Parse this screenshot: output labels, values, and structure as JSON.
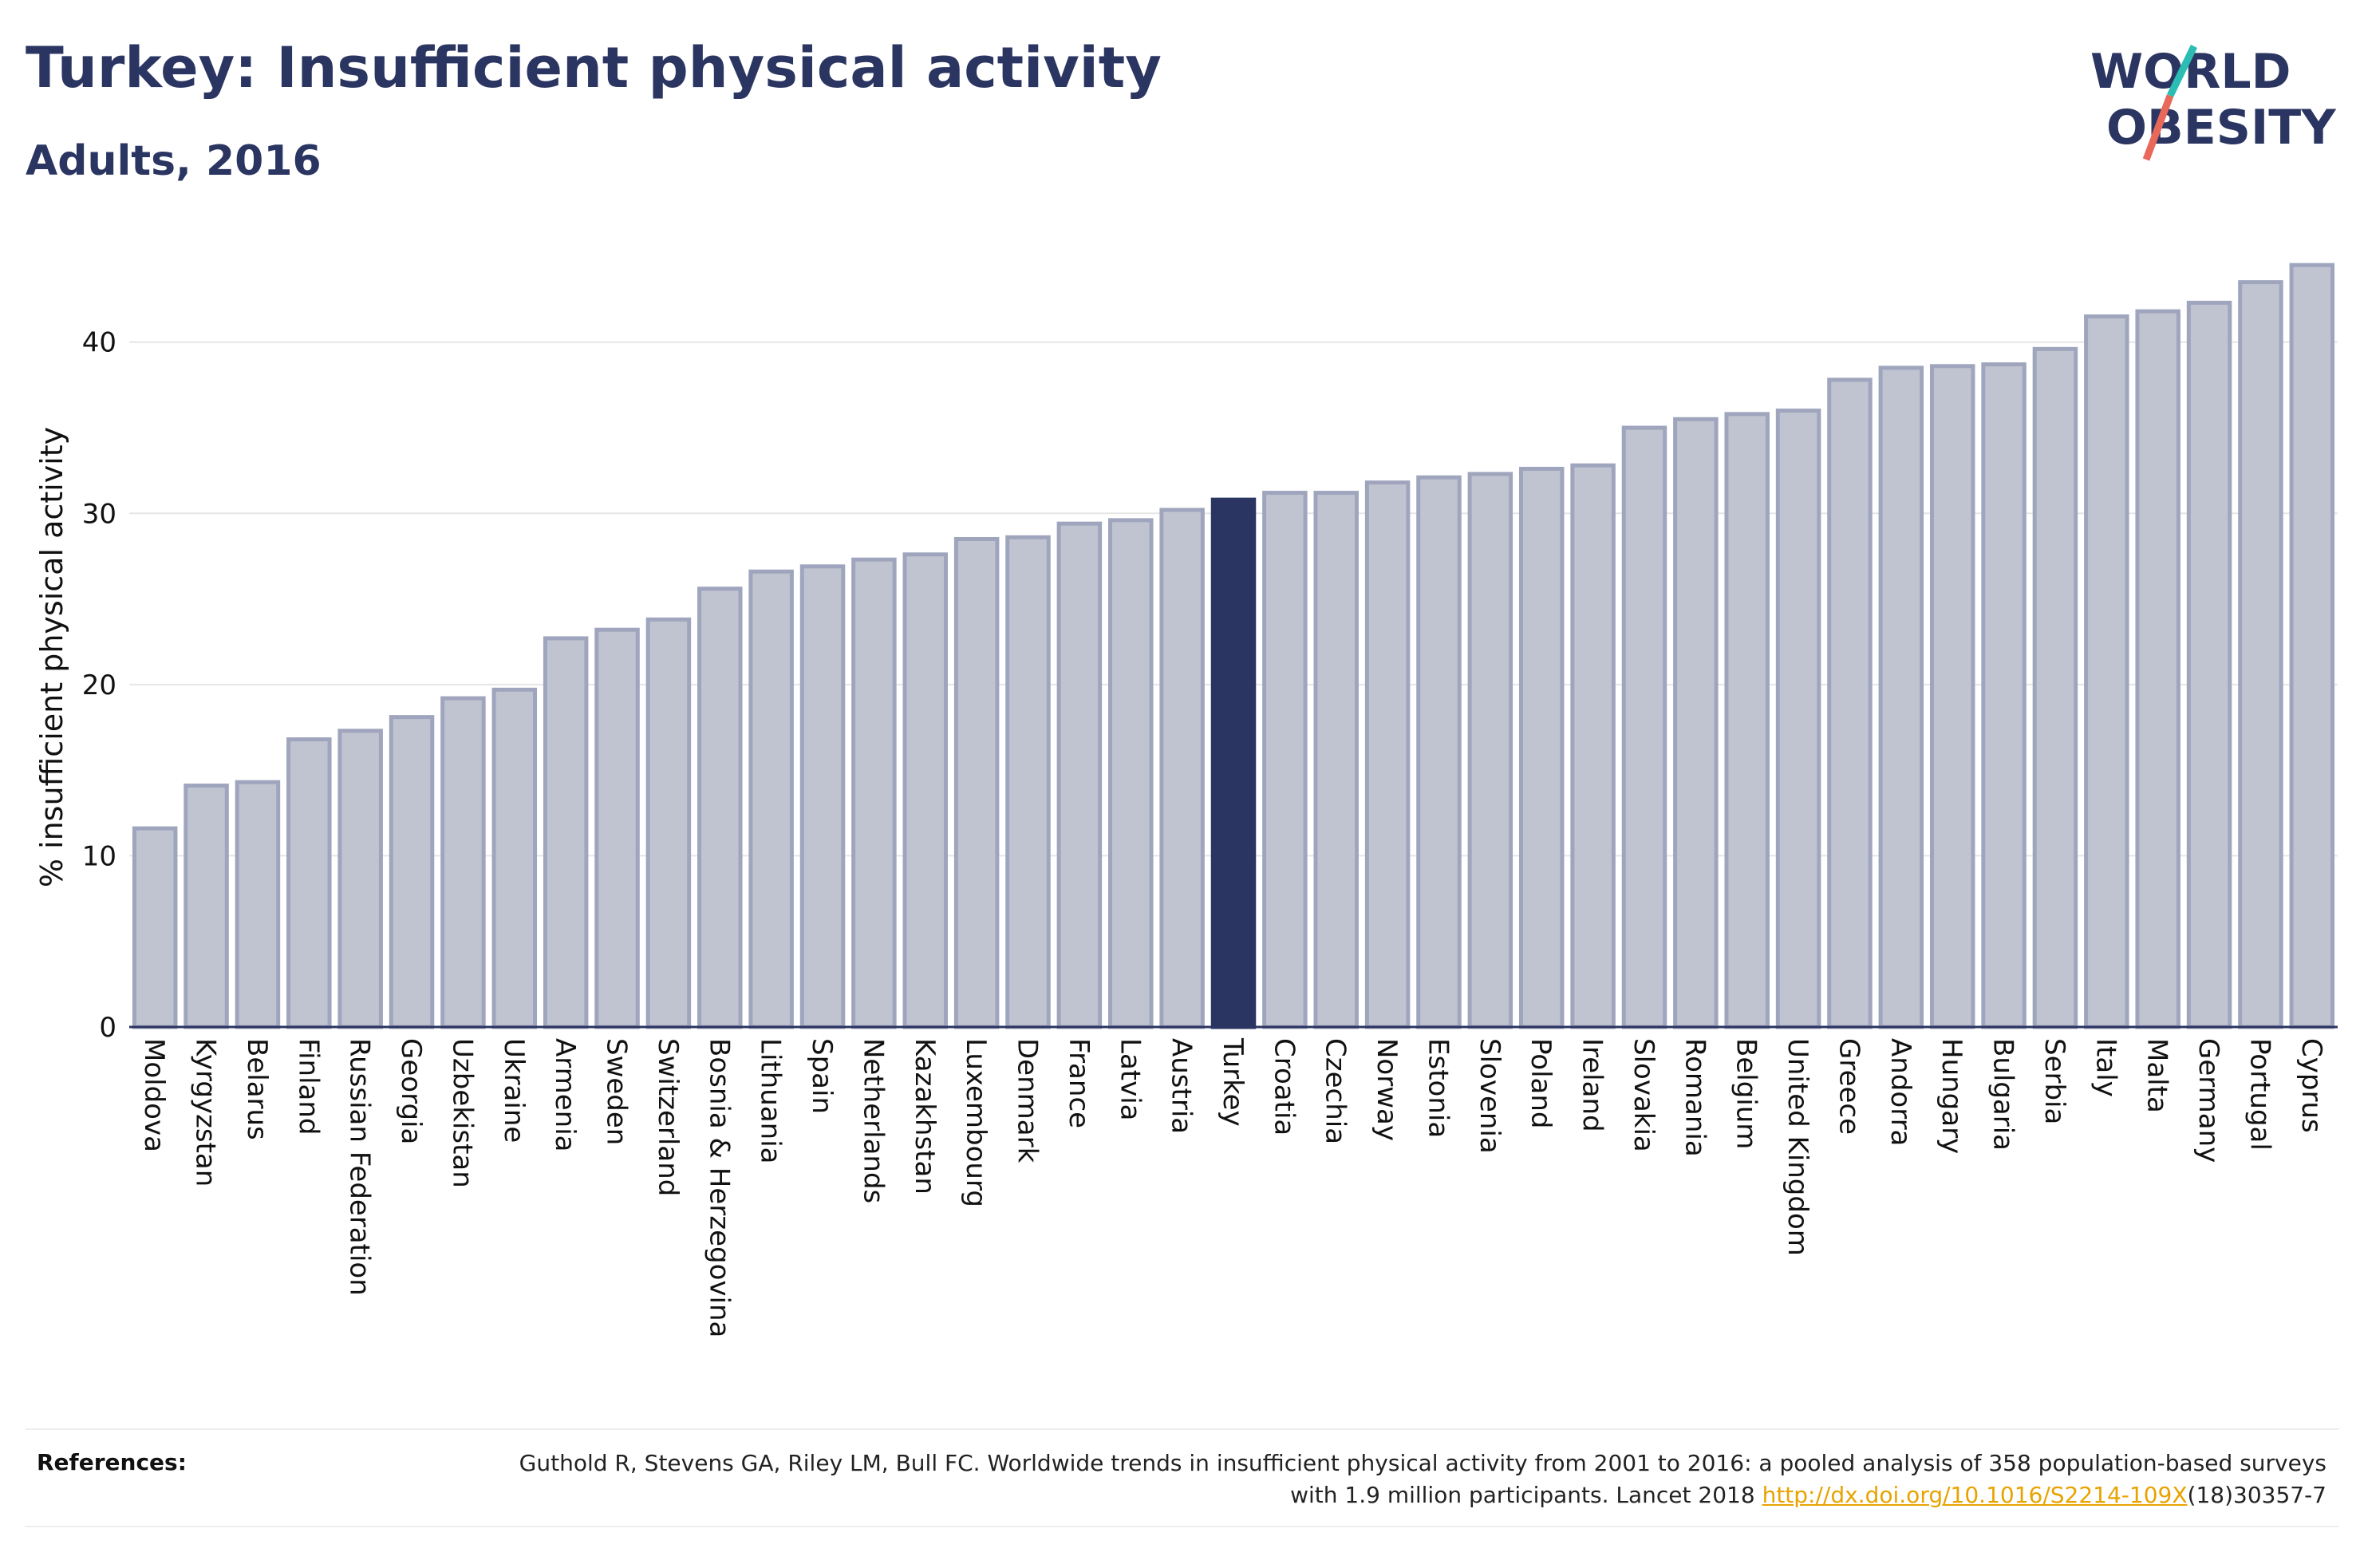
{
  "header": {
    "title": "Turkey: Insufficient physical activity",
    "subtitle": "Adults, 2016"
  },
  "logo": {
    "line1": "WORLD",
    "line2": "OBESITY"
  },
  "colors": {
    "highlight": "#2b3561",
    "bar_fill": "#c0c4d1",
    "bar_stroke": "#9fa5bd",
    "text": "#2b3561"
  },
  "chart_data": {
    "type": "bar",
    "ylabel": "% insufficient physical activity",
    "ylim": [
      0,
      46
    ],
    "yticks": [
      0,
      10,
      20,
      30,
      40
    ],
    "grid": true,
    "highlight": "Turkey",
    "categories": [
      "Moldova",
      "Kyrgyzstan",
      "Belarus",
      "Finland",
      "Russian Federation",
      "Georgia",
      "Uzbekistan",
      "Ukraine",
      "Armenia",
      "Sweden",
      "Switzerland",
      "Bosnia & Herzegovina",
      "Lithuania",
      "Spain",
      "Netherlands",
      "Kazakhstan",
      "Luxembourg",
      "Denmark",
      "France",
      "Latvia",
      "Austria",
      "Turkey",
      "Croatia",
      "Czechia",
      "Norway",
      "Estonia",
      "Slovenia",
      "Poland",
      "Ireland",
      "Slovakia",
      "Romania",
      "Belgium",
      "United Kingdom",
      "Greece",
      "Andorra",
      "Hungary",
      "Bulgaria",
      "Serbia",
      "Italy",
      "Malta",
      "Germany",
      "Portugal",
      "Cyprus"
    ],
    "values": [
      11.6,
      14.1,
      14.3,
      16.8,
      17.3,
      18.1,
      19.2,
      19.7,
      22.7,
      23.2,
      23.8,
      25.6,
      26.6,
      26.9,
      27.3,
      27.6,
      28.5,
      28.6,
      29.4,
      29.6,
      30.2,
      30.8,
      31.2,
      31.2,
      31.8,
      32.1,
      32.3,
      32.6,
      32.8,
      35.0,
      35.5,
      35.8,
      36.0,
      37.8,
      38.5,
      38.6,
      38.7,
      39.6,
      41.5,
      41.8,
      42.3,
      43.5,
      44.5
    ]
  },
  "references": {
    "label": "References:",
    "text": "Guthold R, Stevens GA, Riley LM, Bull FC. Worldwide trends in insufficient physical activity from 2001 to 2016: a pooled analysis of 358 population-based surveys with 1.9 million participants. Lancet 2018 ",
    "link": "http://dx.doi.org/10.1016/S2214-109X",
    "suffix": "(18)30357-7"
  }
}
